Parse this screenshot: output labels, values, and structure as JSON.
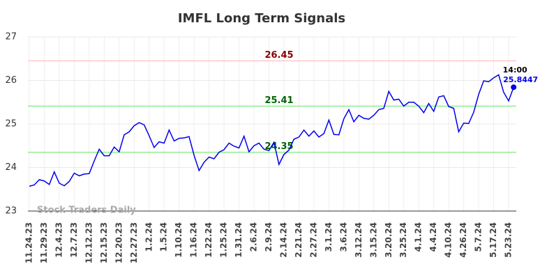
{
  "chart_data": {
    "type": "line",
    "title": "IMFL Long Term Signals",
    "categories": [
      "11.24.23",
      null,
      null,
      "11.29.23",
      null,
      null,
      "12.4.23",
      null,
      null,
      "12.7.23",
      null,
      null,
      "12.12.23",
      null,
      null,
      "12.15.23",
      null,
      null,
      "12.20.23",
      null,
      null,
      "12.27.23",
      null,
      null,
      "1.2.24",
      null,
      null,
      "1.5.24",
      null,
      null,
      "1.10.24",
      null,
      null,
      "1.16.24",
      null,
      null,
      "1.22.24",
      null,
      null,
      "1.25.24",
      null,
      null,
      "1.31.24",
      null,
      null,
      "2.6.24",
      null,
      null,
      "2.9.24",
      null,
      null,
      "2.14.24",
      null,
      null,
      "2.21.24",
      null,
      null,
      "2.27.24",
      null,
      null,
      "3.1.24",
      null,
      null,
      "3.6.24",
      null,
      null,
      "3.12.24",
      null,
      null,
      "3.15.24",
      null,
      null,
      "3.20.24",
      null,
      null,
      "3.25.24",
      null,
      null,
      "4.1.24",
      null,
      null,
      "4.4.24",
      null,
      null,
      "4.10.24",
      null,
      null,
      "4.26.24",
      null,
      null,
      "5.7.24",
      null,
      null,
      "5.17.24",
      null,
      null,
      "5.23.24",
      null
    ],
    "values": [
      23.57,
      23.6,
      23.72,
      23.69,
      23.61,
      23.9,
      23.64,
      23.58,
      23.68,
      23.87,
      23.81,
      23.85,
      23.86,
      24.15,
      24.42,
      24.27,
      24.27,
      24.47,
      24.36,
      24.75,
      24.82,
      24.96,
      25.03,
      24.98,
      24.73,
      24.46,
      24.59,
      24.56,
      24.86,
      24.61,
      24.67,
      24.68,
      24.71,
      24.28,
      23.93,
      24.12,
      24.24,
      24.2,
      24.35,
      24.41,
      24.56,
      24.49,
      24.45,
      24.72,
      24.36,
      24.5,
      24.56,
      24.42,
      24.39,
      24.58,
      24.07,
      24.3,
      24.4,
      24.65,
      24.7,
      24.86,
      24.72,
      24.84,
      24.7,
      24.78,
      25.09,
      24.76,
      24.75,
      25.12,
      25.33,
      25.05,
      25.2,
      25.13,
      25.11,
      25.2,
      25.33,
      25.36,
      25.75,
      25.55,
      25.57,
      25.41,
      25.5,
      25.5,
      25.41,
      25.26,
      25.47,
      25.29,
      25.62,
      25.65,
      25.4,
      25.36,
      24.82,
      25.02,
      25.01,
      25.27,
      25.68,
      25.99,
      25.97,
      26.06,
      26.13,
      25.73,
      25.53,
      25.8447
    ],
    "color": "#0000ee",
    "ylim": [
      23,
      27
    ],
    "yticks": [
      23,
      24,
      25,
      26,
      27
    ],
    "grid": true,
    "hlines": [
      {
        "value": 26.45,
        "color": "#ffc8c8",
        "label_color": "#8b0000"
      },
      {
        "value": 25.41,
        "color": "#90ee90",
        "label_color": "#006400"
      },
      {
        "value": 24.35,
        "color": "#90ee90",
        "label_color": "#006400"
      }
    ],
    "last_time": "14:00",
    "watermark": "Stock Traders Daily"
  }
}
